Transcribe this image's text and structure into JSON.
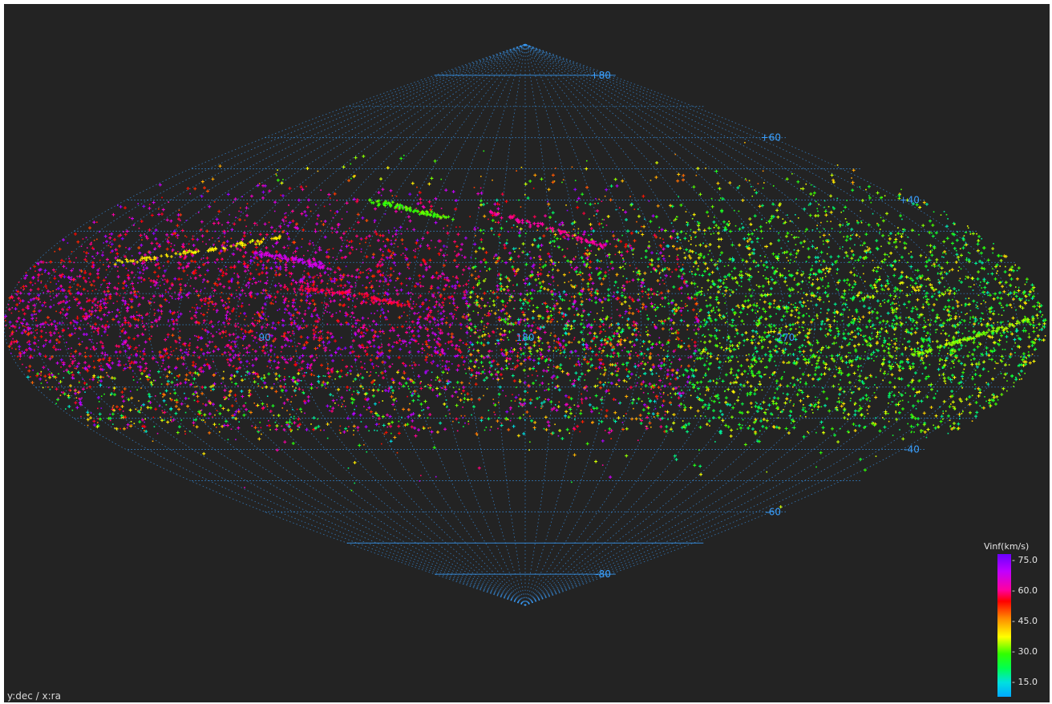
{
  "chart_data": {
    "type": "scatter",
    "projection": "sinusoidal",
    "title": "",
    "axis_caption": "y:dec / x:ra",
    "x": {
      "name": "ra",
      "range": [
        0,
        360
      ],
      "reversed": true,
      "tick_labels": [
        "270",
        "180",
        "90"
      ],
      "tick_values": [
        270,
        180,
        90
      ]
    },
    "y": {
      "name": "dec",
      "range": [
        -90,
        90
      ],
      "tick_labels": [
        "+80",
        "+60",
        "+40",
        "-40",
        "-60",
        "-80"
      ],
      "tick_values": [
        80,
        60,
        40,
        -40,
        -60,
        -80
      ]
    },
    "grid": true,
    "background": "#232323",
    "grid_color": "#3aa0ff",
    "colorbar": {
      "title": "Vinf(km/s)",
      "range": [
        8,
        78
      ],
      "ticks": [
        "75.0",
        "60.0",
        "45.0",
        "30.0",
        "15.0"
      ],
      "tick_values": [
        75,
        60,
        45,
        30,
        15
      ],
      "colors": [
        "#6a00ff",
        "#c000ff",
        "#ff00a0",
        "#ff0000",
        "#ff8a00",
        "#ffff00",
        "#30ff00",
        "#00ff50",
        "#00e0e0",
        "#00a8ff"
      ],
      "placement": "bottom-right"
    },
    "point_count_estimate": 9000,
    "streams": [
      {
        "ra": [
          210,
          190,
          165
        ],
        "dec": [
          25,
          31,
          36
        ],
        "vinf": 62
      },
      {
        "ra": [
          110,
          95,
          78
        ],
        "dec": [
          18,
          21,
          23
        ],
        "vinf": 68
      },
      {
        "ra": [
          355,
          335,
          315
        ],
        "dec": [
          2,
          -4,
          -10
        ],
        "vinf": 35
      },
      {
        "ra": [
          140,
          120,
          95
        ],
        "dec": [
          6,
          10,
          12
        ],
        "vinf": 58
      },
      {
        "ra": [
          85,
          60,
          30
        ],
        "dec": [
          28,
          24,
          20
        ],
        "vinf": 40
      },
      {
        "ra": [
          150,
          130,
          110
        ],
        "dec": [
          34,
          37,
          40
        ],
        "vinf": 32
      }
    ]
  }
}
